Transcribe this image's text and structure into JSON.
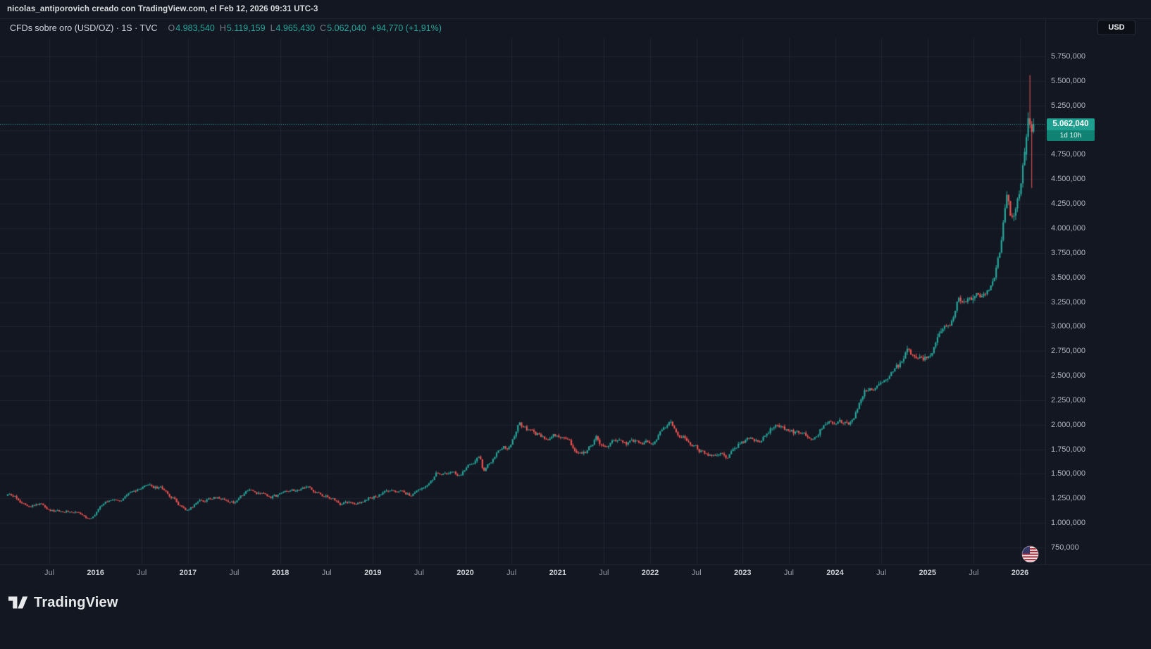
{
  "attribution": "nicolas_antiporovich creado con TradingView.com, el Feb 12, 2026 09:31 UTC-3",
  "currency_button": "USD",
  "legend": {
    "symbol_title": "CFDs sobre oro (USD/OZ) · 1S · TVC",
    "ohlc": [
      {
        "label": "O",
        "value": "4.983,540"
      },
      {
        "label": "H",
        "value": "5.119,159"
      },
      {
        "label": "L",
        "value": "4.965,430"
      },
      {
        "label": "C",
        "value": "5.062,040"
      }
    ],
    "change": "+94,770 (+1,91%)"
  },
  "price_label": {
    "value": "5.062,040",
    "countdown": "1d 10h"
  },
  "footer": {
    "brand": "TradingView"
  },
  "icons": {
    "symbol_logo": "us-flag",
    "footer_logo": "tradingview-mark"
  },
  "chart_data": {
    "type": "candlestick",
    "title": "CFDs sobre oro (USD/OZ)",
    "interval": "1S",
    "exchange": "TVC",
    "current_bar": {
      "open": 4983.54,
      "high": 5119.159,
      "low": 4965.43,
      "close": 5062.04,
      "change_abs": 94.77,
      "change_pct": 1.91
    },
    "time_range_years": [
      2015.05,
      2026.15
    ],
    "y_axis": {
      "grid_min": 750,
      "grid_max": 5750,
      "grid_step": 250,
      "ticks": [
        {
          "p": 5750,
          "label": "5.750,000"
        },
        {
          "p": 5500,
          "label": "5.500,000"
        },
        {
          "p": 5250,
          "label": "5.250,000"
        },
        {
          "p": 4750,
          "label": "4.750,000"
        },
        {
          "p": 4500,
          "label": "4.500,000"
        },
        {
          "p": 4250,
          "label": "4.250,000"
        },
        {
          "p": 4000,
          "label": "4.000,000"
        },
        {
          "p": 3750,
          "label": "3.750,000"
        },
        {
          "p": 3500,
          "label": "3.500,000"
        },
        {
          "p": 3250,
          "label": "3.250,000"
        },
        {
          "p": 3000,
          "label": "3.000,000"
        },
        {
          "p": 2750,
          "label": "2.750,000"
        },
        {
          "p": 2500,
          "label": "2.500,000"
        },
        {
          "p": 2250,
          "label": "2.250,000"
        },
        {
          "p": 2000,
          "label": "2.000,000"
        },
        {
          "p": 1750,
          "label": "1.750,000"
        },
        {
          "p": 1500,
          "label": "1.500,000"
        },
        {
          "p": 1250,
          "label": "1.250,000"
        },
        {
          "p": 1000,
          "label": "1.000,000"
        },
        {
          "p": 750,
          "label": "750,000"
        }
      ]
    },
    "x_axis": {
      "first_tick_year": 2015.5,
      "tick_interval_years": 0.5,
      "labels": [
        "Jul",
        "2016",
        "Jul",
        "2017",
        "Jul",
        "2018",
        "Jul",
        "2019",
        "Jul",
        "2020",
        "Jul",
        "2021",
        "Jul",
        "2022",
        "Jul",
        "2023",
        "Jul",
        "2024",
        "Jul",
        "2025",
        "Jul",
        "2026"
      ]
    },
    "trend_anchors": [
      [
        2015.05,
        1275
      ],
      [
        2015.2,
        1215
      ],
      [
        2015.4,
        1205
      ],
      [
        2015.55,
        1135
      ],
      [
        2015.75,
        1125
      ],
      [
        2015.95,
        1065
      ],
      [
        2016.1,
        1200
      ],
      [
        2016.25,
        1245
      ],
      [
        2016.5,
        1330
      ],
      [
        2016.6,
        1355
      ],
      [
        2016.75,
        1330
      ],
      [
        2016.85,
        1250
      ],
      [
        2016.98,
        1135
      ],
      [
        2017.1,
        1210
      ],
      [
        2017.3,
        1260
      ],
      [
        2017.5,
        1230
      ],
      [
        2017.68,
        1335
      ],
      [
        2017.8,
        1290
      ],
      [
        2017.95,
        1270
      ],
      [
        2018.05,
        1345
      ],
      [
        2018.3,
        1335
      ],
      [
        2018.45,
        1290
      ],
      [
        2018.65,
        1195
      ],
      [
        2018.8,
        1200
      ],
      [
        2018.95,
        1255
      ],
      [
        2019.1,
        1315
      ],
      [
        2019.3,
        1295
      ],
      [
        2019.42,
        1280
      ],
      [
        2019.6,
        1420
      ],
      [
        2019.68,
        1520
      ],
      [
        2019.85,
        1490
      ],
      [
        2019.95,
        1480
      ],
      [
        2020.05,
        1565
      ],
      [
        2020.15,
        1650
      ],
      [
        2020.2,
        1505
      ],
      [
        2020.35,
        1720
      ],
      [
        2020.5,
        1780
      ],
      [
        2020.58,
        2025
      ],
      [
        2020.62,
        1990
      ],
      [
        2020.75,
        1900
      ],
      [
        2020.88,
        1875
      ],
      [
        2020.95,
        1890
      ],
      [
        2021.02,
        1920
      ],
      [
        2021.1,
        1830
      ],
      [
        2021.2,
        1725
      ],
      [
        2021.33,
        1745
      ],
      [
        2021.42,
        1890
      ],
      [
        2021.5,
        1790
      ],
      [
        2021.6,
        1805
      ],
      [
        2021.72,
        1760
      ],
      [
        2021.85,
        1800
      ],
      [
        2021.95,
        1805
      ],
      [
        2022.05,
        1840
      ],
      [
        2022.17,
        1990
      ],
      [
        2022.2,
        2030
      ],
      [
        2022.3,
        1940
      ],
      [
        2022.42,
        1850
      ],
      [
        2022.53,
        1745
      ],
      [
        2022.6,
        1715
      ],
      [
        2022.72,
        1650
      ],
      [
        2022.83,
        1650
      ],
      [
        2022.92,
        1775
      ],
      [
        2023.0,
        1835
      ],
      [
        2023.1,
        1875
      ],
      [
        2023.2,
        1840
      ],
      [
        2023.3,
        1985
      ],
      [
        2023.35,
        2015
      ],
      [
        2023.45,
        1960
      ],
      [
        2023.55,
        1925
      ],
      [
        2023.65,
        1915
      ],
      [
        2023.75,
        1840
      ],
      [
        2023.85,
        1985
      ],
      [
        2023.95,
        2045
      ],
      [
        2024.05,
        2035
      ],
      [
        2024.15,
        2030
      ],
      [
        2024.25,
        2180
      ],
      [
        2024.32,
        2340
      ],
      [
        2024.42,
        2320
      ],
      [
        2024.5,
        2330
      ],
      [
        2024.62,
        2470
      ],
      [
        2024.72,
        2580
      ],
      [
        2024.8,
        2740
      ],
      [
        2024.88,
        2620
      ],
      [
        2024.95,
        2640
      ],
      [
        2025.05,
        2720
      ],
      [
        2025.12,
        2880
      ],
      [
        2025.2,
        2940
      ],
      [
        2025.28,
        3120
      ],
      [
        2025.33,
        3340
      ],
      [
        2025.38,
        3230
      ],
      [
        2025.45,
        3300
      ],
      [
        2025.5,
        3320
      ],
      [
        2025.58,
        3360
      ],
      [
        2025.65,
        3340
      ],
      [
        2025.72,
        3470
      ],
      [
        2025.78,
        3680
      ],
      [
        2025.82,
        3990
      ],
      [
        2025.86,
        4210
      ],
      [
        2025.9,
        4060
      ],
      [
        2025.94,
        4150
      ],
      [
        2025.98,
        4250
      ],
      [
        2026.0,
        4330
      ],
      [
        2026.03,
        4560
      ],
      [
        2026.06,
        4750
      ]
    ],
    "final_candles": [
      [
        4750,
        4960,
        4690,
        4930
      ],
      [
        4930,
        5180,
        4890,
        5120
      ],
      [
        5120,
        5560,
        5020,
        5060
      ],
      [
        5060,
        5090,
        4410,
        4980
      ],
      [
        4983.54,
        5119.159,
        4965.43,
        5062.04
      ]
    ],
    "colors": {
      "up": "#26a69a",
      "down": "#ef5350",
      "background": "#131722",
      "grid": "rgba(190,202,230,0.075)",
      "axis_text": "#b2b5be",
      "price_line": "#26a69a",
      "price_label_bg": "#1f9f90",
      "countdown_bg": "#0f8273"
    }
  }
}
